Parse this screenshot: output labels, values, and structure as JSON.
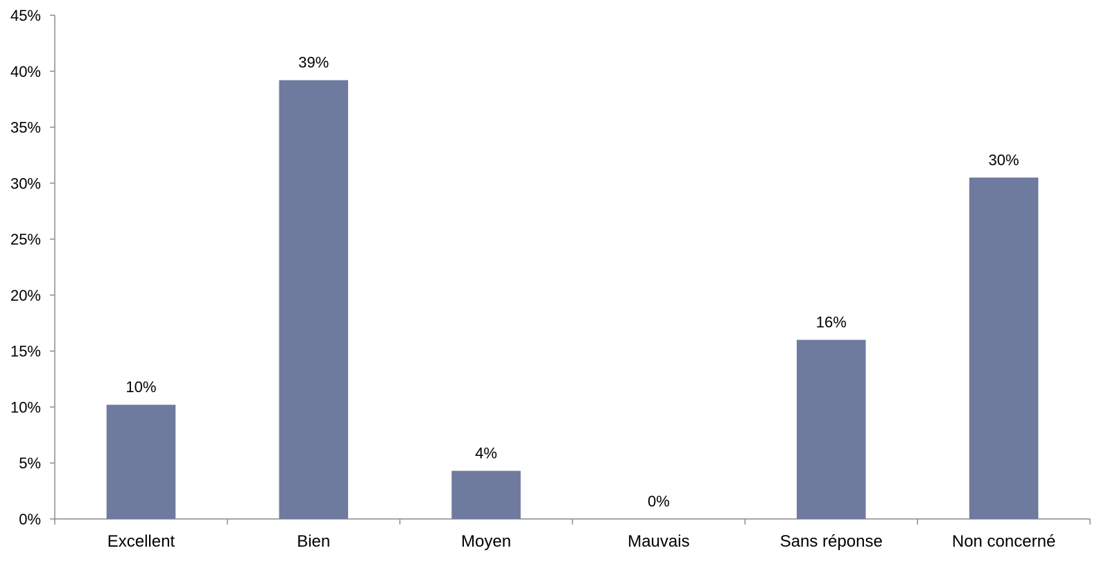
{
  "chart_data": {
    "type": "bar",
    "title": "",
    "xlabel": "",
    "ylabel": "",
    "categories": [
      "Excellent",
      "Bien",
      "Moyen",
      "Mauvais",
      "Sans réponse",
      "Non concerné"
    ],
    "values": [
      10.2,
      39.2,
      4.3,
      0,
      16.0,
      30.5
    ],
    "data_labels": [
      "10%",
      "39%",
      "4%",
      "0%",
      "16%",
      "30%"
    ],
    "ylim": [
      0,
      45
    ],
    "yticks": [
      0,
      5,
      10,
      15,
      20,
      25,
      30,
      35,
      40,
      45
    ],
    "ytick_labels": [
      "0%",
      "5%",
      "10%",
      "15%",
      "20%",
      "25%",
      "30%",
      "35%",
      "40%",
      "45%"
    ],
    "grid": false,
    "legend": "none",
    "colors": {
      "bar": "#6f7a9f",
      "axis": "#8c8c8c",
      "text": "#000000"
    }
  }
}
